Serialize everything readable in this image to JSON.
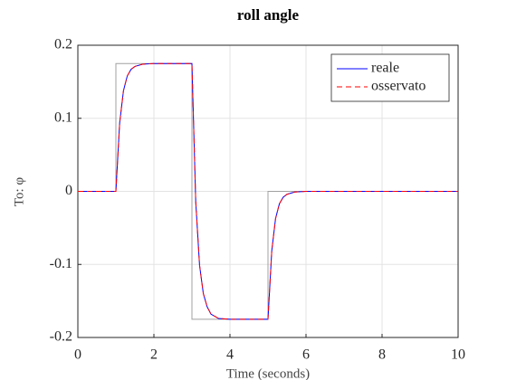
{
  "chart_data": {
    "type": "line",
    "title": "roll angle",
    "xlabel": "Time (seconds)",
    "ylabel": "To: φ",
    "xlim": [
      0,
      10
    ],
    "ylim": [
      -0.2,
      0.2
    ],
    "xticks": [
      0,
      2,
      4,
      6,
      8,
      10
    ],
    "yticks": [
      -0.2,
      -0.1,
      0,
      0.1,
      0.2
    ],
    "grid": true,
    "legend": "northeast",
    "series": [
      {
        "color": "#a0a0a0",
        "dash": "solid",
        "x": [
          0,
          1,
          1,
          3,
          3,
          5,
          5,
          10
        ],
        "values": [
          0,
          0,
          0.175,
          0.175,
          -0.175,
          -0.175,
          0,
          0
        ]
      },
      {
        "name": "reale",
        "color": "#0000ff",
        "dash": "solid",
        "x": [
          0,
          1,
          1.1,
          1.2,
          1.3,
          1.4,
          1.5,
          1.7,
          2,
          3,
          3.1,
          3.2,
          3.3,
          3.4,
          3.5,
          3.7,
          4,
          5,
          5.1,
          5.2,
          5.3,
          5.4,
          5.5,
          5.7,
          6,
          10
        ],
        "values": [
          0,
          0,
          0.094,
          0.138,
          0.158,
          0.167,
          0.171,
          0.174,
          0.175,
          0.175,
          -0.014,
          -0.101,
          -0.14,
          -0.158,
          -0.168,
          -0.174,
          -0.175,
          -0.175,
          -0.081,
          -0.037,
          -0.017,
          -0.008,
          -0.004,
          -0.001,
          0,
          0
        ]
      },
      {
        "name": "osservato",
        "color": "#ff0000",
        "dash": "dashed",
        "x": [
          0,
          1,
          1.1,
          1.2,
          1.3,
          1.4,
          1.5,
          1.7,
          2,
          3,
          3.1,
          3.2,
          3.3,
          3.4,
          3.5,
          3.7,
          4,
          5,
          5.1,
          5.2,
          5.3,
          5.4,
          5.5,
          5.7,
          6,
          10
        ],
        "values": [
          0,
          0,
          0.094,
          0.138,
          0.158,
          0.167,
          0.171,
          0.174,
          0.175,
          0.175,
          -0.014,
          -0.101,
          -0.14,
          -0.158,
          -0.168,
          -0.174,
          -0.175,
          -0.175,
          -0.081,
          -0.037,
          -0.017,
          -0.008,
          -0.004,
          -0.001,
          0,
          0
        ]
      }
    ]
  }
}
